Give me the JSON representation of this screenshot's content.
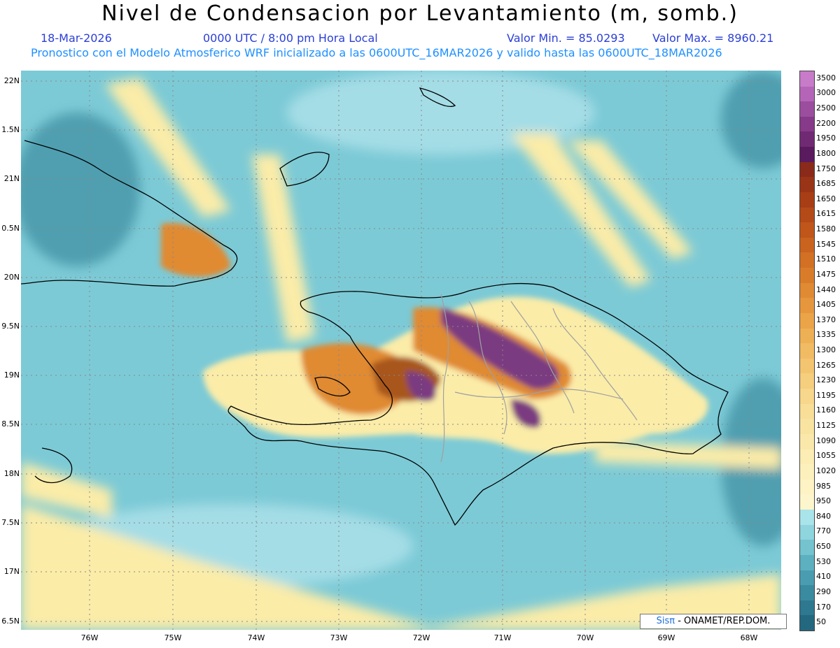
{
  "title": "Nivel de Condensacion por Levantamiento (m, somb.)",
  "header": {
    "date": "18-Mar-2026",
    "time": "0000 UTC / 8:00 pm Hora Local",
    "value_min": "Valor Min. = 85.0293",
    "value_max": "Valor Max. = 8960.21",
    "model_info": "Pronostico con el Modelo Atmosferico WRF inicializado a las 0600UTC_16MAR2026 y valido hasta las  0600UTC_18MAR2026"
  },
  "lat_labels": [
    "22N",
    "1.5N",
    "21N",
    "0.5N",
    "20N",
    "9.5N",
    "19N",
    "8.5N",
    "18N",
    "7.5N",
    "17N",
    "6.5N"
  ],
  "lon_labels": [
    "76W",
    "75W",
    "74W",
    "73W",
    "72W",
    "71W",
    "70W",
    "69W",
    "68W"
  ],
  "colorbar": {
    "labels": [
      "3500",
      "3000",
      "2500",
      "2200",
      "1950",
      "1800",
      "1750",
      "1685",
      "1650",
      "1615",
      "1580",
      "1545",
      "1510",
      "1475",
      "1440",
      "1405",
      "1370",
      "1335",
      "1300",
      "1265",
      "1230",
      "1195",
      "1160",
      "1125",
      "1090",
      "1055",
      "1020",
      "985",
      "950",
      "840",
      "770",
      "650",
      "530",
      "410",
      "290",
      "170",
      "50"
    ],
    "colors": [
      "#c77bc9",
      "#b565b7",
      "#9c4e9e",
      "#863a89",
      "#702a73",
      "#5a1a5e",
      "#8a2a1a",
      "#9a3417",
      "#a83e16",
      "#b44a18",
      "#c0561a",
      "#c9631e",
      "#d27024",
      "#d97c2a",
      "#e08a33",
      "#e6973d",
      "#eba448",
      "#eeb055",
      "#f1bb63",
      "#f3c570",
      "#f5ce7e",
      "#f7d78b",
      "#f8de97",
      "#f9e3a1",
      "#fae8aa",
      "#fbedb3",
      "#fcf0bc",
      "#fdf3c4",
      "#fdf6cc",
      "#a9e4ea",
      "#8fd5de",
      "#74c3cf",
      "#5cb0bf",
      "#4a9db0",
      "#3a8aa0",
      "#2e7890",
      "#246880"
    ]
  },
  "credit": {
    "brand": "SisPI",
    "org": " - ONAMET/REP.DOM."
  },
  "colors": {
    "ocean_low": "#7ccad6",
    "ocean_mid": "#a4dde6",
    "ocean_deep": "#4f9fb0",
    "yellow": "#fbeca8",
    "orange": "#e08a33",
    "brown": "#a8561e",
    "purple": "#7a3a80"
  }
}
